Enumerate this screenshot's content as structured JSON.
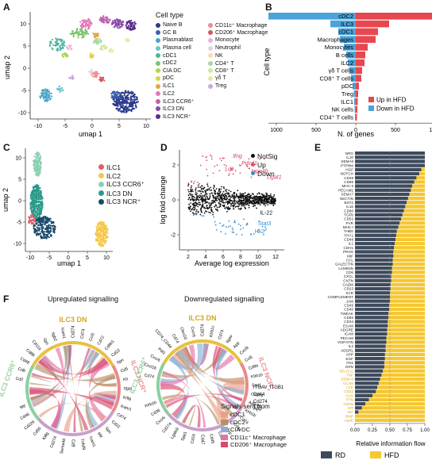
{
  "panels": {
    "a": {
      "label": "A",
      "xlabel": "umap 1",
      "ylabel": "umap 2",
      "xticks": [
        "-10",
        "-5",
        "0",
        "5",
        "10"
      ],
      "yticks": [
        "10",
        "5",
        "0",
        "-5",
        "-10"
      ],
      "legend_title": "Cell type",
      "legend_col1": [
        {
          "name": "Naive B",
          "color": "#2b3a8c"
        },
        {
          "name": "GC B",
          "color": "#3a5fb0"
        },
        {
          "name": "Plasmablast",
          "color": "#4aa3c7"
        },
        {
          "name": "Plasma cell",
          "color": "#6fc3d0"
        },
        {
          "name": "cDC1",
          "color": "#4ab5a0"
        },
        {
          "name": "cDC2",
          "color": "#7ac36a"
        },
        {
          "name": "CIA DC",
          "color": "#b0d25a"
        },
        {
          "name": "pDC",
          "color": "#d8d24a"
        },
        {
          "name": "ILC1",
          "color": "#e8a53a"
        },
        {
          "name": "ILC2",
          "color": "#e07ab8"
        },
        {
          "name": "ILC3 CCR6⁺",
          "color": "#c060b0"
        },
        {
          "name": "ILC3 DN",
          "color": "#8a4aa8"
        },
        {
          "name": "ILC3 NCR⁺",
          "color": "#5a2a8c"
        }
      ],
      "legend_col2": [
        {
          "name": "CD11c⁺ Macrophage",
          "color": "#f08a8a"
        },
        {
          "name": "CD206⁺ Macrophage",
          "color": "#d05a5a"
        },
        {
          "name": "Monocyte",
          "color": "#f0b0d0"
        },
        {
          "name": "Neutrophil",
          "color": "#e8d0e8"
        },
        {
          "name": "NK",
          "color": "#f5e0b0"
        },
        {
          "name": "CD4⁺ T",
          "color": "#a8d8a0"
        },
        {
          "name": "CD8⁺ T",
          "color": "#d0e8a0"
        },
        {
          "name": "γδ T",
          "color": "#e8e8a0"
        },
        {
          "name": "Treg",
          "color": "#c8a8e0"
        }
      ]
    },
    "b": {
      "label": "B",
      "ylabel": "Cell type",
      "xlabel": "N. of genes",
      "xticks": [
        "1000",
        "500",
        "0",
        "500",
        "1000"
      ],
      "legend": [
        {
          "name": "Up in HFD",
          "color": "#e8474f"
        },
        {
          "name": "Down in HFD",
          "color": "#4aa3d9"
        }
      ]
    },
    "c": {
      "label": "C",
      "xlabel": "umap 1",
      "ylabel": "umap 2",
      "xticks": [
        "-10",
        "-5",
        "0",
        "5",
        "10"
      ],
      "yticks": [
        "10",
        "5",
        "0",
        "-5",
        "-10"
      ],
      "legend": [
        {
          "name": "ILC1",
          "color": "#e06070"
        },
        {
          "name": "ILC2",
          "color": "#f5c84a"
        },
        {
          "name": "ILC3 CCR6⁺",
          "color": "#8ad0b0"
        },
        {
          "name": "ILC3 DN",
          "color": "#2a9a8a"
        },
        {
          "name": "ILC3 NCR⁺",
          "color": "#1a4a6a"
        }
      ]
    },
    "d": {
      "label": "D",
      "xlabel": "Average log expression",
      "ylabel": "log fold change",
      "xticks": [
        "2",
        "4",
        "6",
        "8",
        "10",
        "12"
      ],
      "yticks": [
        "2",
        "0",
        "-2"
      ],
      "legend": [
        {
          "name": "NotSig",
          "color": "#111111"
        },
        {
          "name": "Up",
          "color": "#e0506a"
        },
        {
          "name": "Down",
          "color": "#3a8fd0"
        }
      ],
      "gene_labels_up": [
        "Ifng",
        "Pdcd1",
        "Ldlr",
        "Inpp4b",
        "Dgat1"
      ],
      "gene_labels_down": [
        "IL-22",
        "Stat3",
        "Hk2"
      ]
    },
    "e": {
      "label": "E",
      "xlabel": "Relative information flow",
      "xticks": [
        "0.00",
        "0.25",
        "0.50",
        "0.75",
        "1.00"
      ],
      "legend": [
        {
          "name": "RD",
          "color": "#3d4a5c"
        },
        {
          "name": "HFD",
          "color": "#f5c730"
        }
      ]
    },
    "f": {
      "label": "F",
      "left_title": "Upregulated signalling",
      "right_title": "Downregulated signalling",
      "left_groups": [
        "ILC3 DN",
        "ILC3 CCR6⁺",
        "ILC3 NCR⁺"
      ],
      "right_groups": [
        "ILC3 DN",
        "ILC3 CCR6⁺",
        "ILC3 NCR⁺"
      ],
      "left_genes": [
        "Cd2",
        "Cd6",
        "Cd48",
        "Cd86",
        "Cd11a",
        "Spn",
        "Itgb2",
        "Icam1",
        "Cd274",
        "Cd74",
        "Ccl5",
        "Cd72",
        "Cd8b1",
        "Cd22",
        "Spn",
        "Cd5",
        "Kit",
        "Itgal",
        "Kitlg",
        "Icam1",
        "Cd74",
        "Cd22",
        "Spn",
        "Mif",
        "Icam1",
        "Tnfsf9",
        "Cd9",
        "Sema4d",
        "Cd274",
        "Kitlg",
        "Cd55",
        "Cd226",
        "Cd48",
        "Mif"
      ],
      "right_genes": [
        "Cd74",
        "Cxcl16",
        "Cxcr6",
        "Pdl1",
        "CD74_CD44",
        "Cd74",
        "Clec2d",
        "Cxcr6",
        "Cd274",
        "Klrb1c",
        "Cd74",
        "Itgav",
        "App",
        "Cxcl9",
        "Ccl5",
        "Cd8a",
        "Klrb1b",
        "Sorl1",
        "Cd274",
        "Adgre5",
        "Klrb1b",
        "Cd74",
        "Cd44",
        "App",
        "Cd6",
        "Cd45",
        "Cd47",
        "Cd16",
        "Spp1",
        "Lgals9",
        "Cd274",
        "Cxcr6",
        "Cd38",
        "Klrb1b"
      ],
      "right_labels_extra": [
        "ITGAV_ITGB1",
        "Cd44",
        "Cd274",
        "App"
      ],
      "legend_title": "Signals sent from",
      "legend": [
        {
          "name": "cDC1",
          "color": "#e8a088"
        },
        {
          "name": "cDC2",
          "color": "#b89068"
        },
        {
          "name": "CIA DC",
          "color": "#8ab0d8"
        },
        {
          "name": "CD11c⁺ Macrophage",
          "color": "#e870a8"
        },
        {
          "name": "CD206⁺ Macrophage",
          "color": "#d84a70"
        }
      ]
    }
  },
  "chart_data": [
    {
      "type": "bar",
      "panel": "B",
      "ylabel": "Cell type",
      "xlabel": "N. of genes",
      "categories": [
        "cDC2",
        "ILC3",
        "cDC1",
        "Macrophages",
        "Monocytes",
        "B cells",
        "ILC2",
        "γδ T cells",
        "CD8⁺ T cells",
        "pDC",
        "Treg",
        "ILC1",
        "NK cells",
        "CD4⁺ T cells"
      ],
      "series": [
        {
          "name": "Up in HFD",
          "values": [
            1150,
            420,
            280,
            250,
            150,
            120,
            110,
            80,
            70,
            40,
            30,
            25,
            20,
            15
          ]
        },
        {
          "name": "Down in HFD",
          "values": [
            -1100,
            -320,
            -220,
            -200,
            -150,
            -120,
            -100,
            -80,
            -60,
            -40,
            -25,
            -20,
            -15,
            -10
          ]
        }
      ],
      "xlim": [
        -1200,
        1200
      ]
    },
    {
      "type": "bar",
      "panel": "E",
      "xlabel": "Relative information flow",
      "categories": [
        "NRG",
        "IL10",
        "SEMA6",
        "PTPRM",
        "HGF",
        "NOTCH",
        "CD39",
        "CD96",
        "MHC-II",
        "PECAM1",
        "SEMA7",
        "NECTIN",
        "BST2",
        "IL16",
        "CD80",
        "TGFb",
        "CD52",
        "PVR",
        "MHC-I",
        "THBS",
        "THY1",
        "CD48",
        "IL1",
        "CDH1",
        "PROS",
        "MIF",
        "CCL",
        "GALECTIN",
        "LAMININ",
        "CD6",
        "CXCL",
        "CNTN",
        "CADM",
        "CD23",
        "XCR",
        "COMPLEMENT",
        "JAM",
        "CD45",
        "CD40",
        "TWEAK",
        "CD86",
        "CD34",
        "ESAM",
        "ADGRE",
        "ICAM",
        "PECAM",
        "VISFATIN",
        "IL2",
        "ADGRL",
        "APP",
        "EGF",
        "FN1",
        "GRN",
        "SELPLG",
        "TNF",
        "SEMA4",
        "VCAM",
        "LCK",
        "CD22",
        "GAS",
        "PTN",
        "CDH5",
        "KIT",
        "IGF",
        "BMP",
        "ApoE"
      ],
      "series": [
        {
          "name": "RD",
          "values": [
            1.0,
            1.0,
            1.0,
            1.0,
            0.95,
            0.92,
            0.88,
            0.85,
            0.82,
            0.8,
            0.78,
            0.76,
            0.74,
            0.72,
            0.7,
            0.68,
            0.66,
            0.64,
            0.62,
            0.6,
            0.59,
            0.58,
            0.57,
            0.56,
            0.55,
            0.55,
            0.54,
            0.54,
            0.53,
            0.53,
            0.52,
            0.52,
            0.51,
            0.51,
            0.5,
            0.5,
            0.5,
            0.49,
            0.49,
            0.48,
            0.48,
            0.47,
            0.47,
            0.46,
            0.46,
            0.45,
            0.45,
            0.44,
            0.44,
            0.43,
            0.43,
            0.42,
            0.42,
            0.4,
            0.38,
            0.36,
            0.34,
            0.32,
            0.3,
            0.25,
            0.2,
            0.15,
            0.1,
            0.05,
            0.0,
            0.0
          ]
        },
        {
          "name": "HFD",
          "values": [
            0.0,
            0.0,
            0.0,
            0.0,
            0.05,
            0.08,
            0.12,
            0.15,
            0.18,
            0.2,
            0.22,
            0.24,
            0.26,
            0.28,
            0.3,
            0.32,
            0.34,
            0.36,
            0.38,
            0.4,
            0.41,
            0.42,
            0.43,
            0.44,
            0.45,
            0.45,
            0.46,
            0.46,
            0.47,
            0.47,
            0.48,
            0.48,
            0.49,
            0.49,
            0.5,
            0.5,
            0.5,
            0.51,
            0.51,
            0.52,
            0.52,
            0.53,
            0.53,
            0.54,
            0.54,
            0.55,
            0.55,
            0.56,
            0.56,
            0.57,
            0.57,
            0.58,
            0.58,
            0.6,
            0.62,
            0.64,
            0.66,
            0.68,
            0.7,
            0.75,
            0.8,
            0.85,
            0.9,
            0.95,
            1.0,
            1.0
          ]
        }
      ],
      "xlim": [
        0,
        1
      ],
      "reference_line": 0.5
    }
  ]
}
